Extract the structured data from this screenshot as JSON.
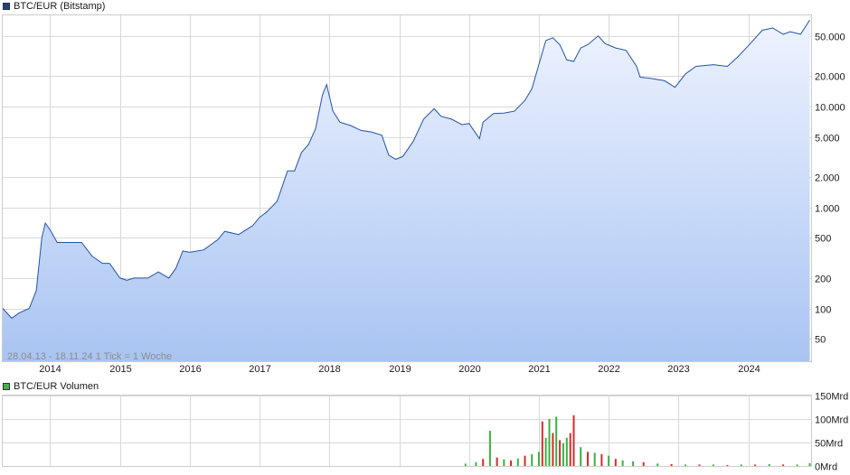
{
  "price_legend": {
    "label": "BTC/EUR (Bitstamp)",
    "color": "#1f3f8f"
  },
  "volume_legend": {
    "label": "BTC/EUR Volumen",
    "color": "#4caf50"
  },
  "footer_text": "28.04.13 - 18.11.24    1 Tick = 1 Woche",
  "colors": {
    "line": "#2452a8",
    "fill_top": "#eef3ff",
    "fill_bottom": "#a9c4f2",
    "grid": "#d9d9d9",
    "vol_up": "#3cb043",
    "vol_down": "#d62c2c"
  },
  "chart_data": [
    {
      "type": "area",
      "title": "BTC/EUR (Bitstamp)",
      "scale": "log",
      "ylim": [
        30,
        80000
      ],
      "grid": true,
      "x_tick_labels": [
        "2014",
        "2015",
        "2016",
        "2017",
        "2018",
        "2019",
        "2020",
        "2021",
        "2022",
        "2023",
        "2024"
      ],
      "y_tick_labels": [
        "50",
        "100",
        "200",
        "500",
        "1.000",
        "2.000",
        "5.000",
        "10.000",
        "20.000",
        "50.000"
      ],
      "y_tick_values": [
        50,
        100,
        200,
        500,
        1000,
        2000,
        5000,
        10000,
        20000,
        50000
      ],
      "x": [
        2013.32,
        2013.45,
        2013.55,
        2013.7,
        2013.8,
        2013.88,
        2013.93,
        2014.0,
        2014.1,
        2014.25,
        2014.45,
        2014.6,
        2014.75,
        2014.85,
        2015.0,
        2015.1,
        2015.2,
        2015.4,
        2015.55,
        2015.7,
        2015.8,
        2015.9,
        2016.0,
        2016.2,
        2016.4,
        2016.5,
        2016.7,
        2016.9,
        2017.0,
        2017.1,
        2017.25,
        2017.4,
        2017.5,
        2017.6,
        2017.7,
        2017.8,
        2017.9,
        2017.96,
        2018.05,
        2018.15,
        2018.3,
        2018.45,
        2018.6,
        2018.75,
        2018.85,
        2018.95,
        2019.05,
        2019.2,
        2019.35,
        2019.5,
        2019.6,
        2019.75,
        2019.9,
        2020.0,
        2020.15,
        2020.2,
        2020.35,
        2020.5,
        2020.65,
        2020.8,
        2020.9,
        2021.0,
        2021.1,
        2021.2,
        2021.3,
        2021.4,
        2021.5,
        2021.6,
        2021.7,
        2021.85,
        2021.95,
        2022.1,
        2022.25,
        2022.4,
        2022.45,
        2022.6,
        2022.8,
        2022.95,
        2023.1,
        2023.25,
        2023.5,
        2023.7,
        2023.85,
        2024.0,
        2024.2,
        2024.35,
        2024.5,
        2024.6,
        2024.75,
        2024.88
      ],
      "values": [
        100,
        80,
        90,
        100,
        150,
        500,
        700,
        600,
        450,
        450,
        450,
        330,
        280,
        280,
        200,
        190,
        200,
        200,
        230,
        200,
        250,
        370,
        360,
        380,
        480,
        580,
        540,
        660,
        800,
        900,
        1150,
        2300,
        2300,
        3500,
        4200,
        6000,
        13000,
        16500,
        9000,
        7000,
        6500,
        5800,
        5600,
        5200,
        3300,
        3000,
        3200,
        4500,
        7500,
        9500,
        8000,
        7500,
        6600,
        6800,
        4800,
        7000,
        8500,
        8600,
        9000,
        11500,
        15000,
        26000,
        45000,
        48000,
        41000,
        29000,
        28000,
        38000,
        41000,
        50000,
        42000,
        38000,
        36000,
        25000,
        19500,
        19000,
        18000,
        15500,
        21000,
        25000,
        26000,
        25000,
        31000,
        40000,
        57000,
        60000,
        52000,
        55000,
        52000,
        72000
      ]
    },
    {
      "type": "bar",
      "title": "BTC/EUR Volumen",
      "ylim": [
        0,
        150
      ],
      "y_tick_labels": [
        "0Mrd",
        "50Mrd",
        "100Mrd",
        "150Mrd"
      ],
      "y_tick_values": [
        0,
        50,
        100,
        150
      ],
      "x": [
        2019.95,
        2020.1,
        2020.2,
        2020.3,
        2020.4,
        2020.5,
        2020.6,
        2020.7,
        2020.8,
        2020.9,
        2021.0,
        2021.05,
        2021.1,
        2021.15,
        2021.2,
        2021.25,
        2021.3,
        2021.35,
        2021.4,
        2021.45,
        2021.5,
        2021.6,
        2021.7,
        2021.8,
        2021.9,
        2022.0,
        2022.1,
        2022.2,
        2022.35,
        2022.5,
        2022.7,
        2022.9,
        2023.1,
        2023.3,
        2023.5,
        2023.7,
        2023.9,
        2024.1,
        2024.3,
        2024.5,
        2024.7,
        2024.88
      ],
      "values": [
        5,
        8,
        15,
        75,
        18,
        14,
        12,
        16,
        22,
        25,
        30,
        95,
        60,
        100,
        70,
        105,
        55,
        48,
        60,
        70,
        108,
        40,
        30,
        28,
        25,
        22,
        15,
        12,
        10,
        8,
        5,
        4,
        3,
        3,
        3,
        2,
        3,
        3,
        4,
        3,
        3,
        6
      ],
      "directions": [
        "up",
        "up",
        "down",
        "up",
        "down",
        "up",
        "down",
        "up",
        "down",
        "up",
        "up",
        "down",
        "up",
        "up",
        "down",
        "up",
        "down",
        "up",
        "up",
        "down",
        "down",
        "up",
        "down",
        "up",
        "down",
        "up",
        "down",
        "up",
        "up",
        "down",
        "up",
        "down",
        "up",
        "down",
        "up",
        "down",
        "up",
        "down",
        "up",
        "down",
        "up",
        "up"
      ]
    }
  ]
}
